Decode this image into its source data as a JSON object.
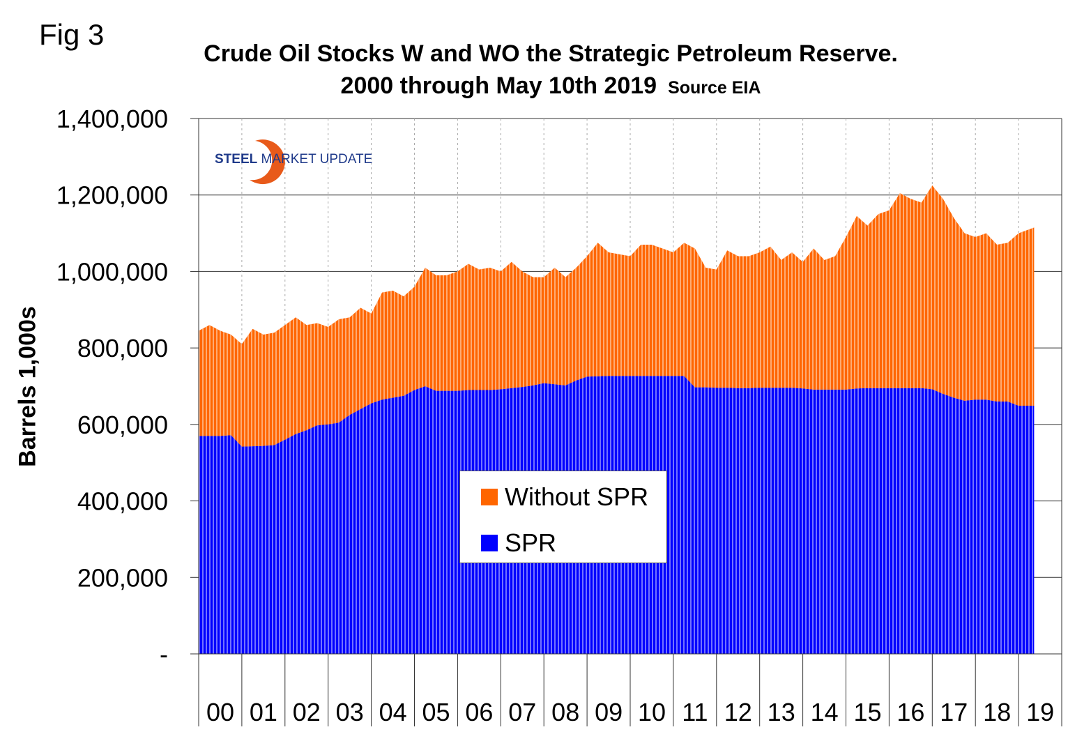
{
  "fig_label": "Fig 3",
  "chart_data": {
    "type": "area",
    "title": "Crude Oil Stocks W and WO the Strategic Petroleum Reserve.",
    "subtitle": "2000 through May 10th 2019",
    "source": "Source EIA",
    "ylabel": "Barrels 1,000s",
    "xlabel": "",
    "ylim": [
      0,
      1400000
    ],
    "yticks": [
      0,
      200000,
      400000,
      600000,
      800000,
      1000000,
      1200000,
      1400000
    ],
    "ytick_labels": [
      "-",
      "200,000",
      "400,000",
      "600,000",
      "800,000",
      "1,000,000",
      "1,200,000",
      "1,400,000"
    ],
    "xlim": [
      2000,
      2020
    ],
    "xtick_labels": [
      "00",
      "01",
      "02",
      "03",
      "04",
      "05",
      "06",
      "07",
      "08",
      "09",
      "10",
      "11",
      "12",
      "13",
      "14",
      "15",
      "16",
      "17",
      "18",
      "19"
    ],
    "grid": true,
    "stacked": true,
    "legend_position": "center",
    "x": [
      "2000-01",
      "2000-04",
      "2000-07",
      "2000-10",
      "2001-01",
      "2001-04",
      "2001-07",
      "2001-10",
      "2002-01",
      "2002-04",
      "2002-07",
      "2002-10",
      "2003-01",
      "2003-04",
      "2003-07",
      "2003-10",
      "2004-01",
      "2004-04",
      "2004-07",
      "2004-10",
      "2005-01",
      "2005-04",
      "2005-07",
      "2005-10",
      "2006-01",
      "2006-04",
      "2006-07",
      "2006-10",
      "2007-01",
      "2007-04",
      "2007-07",
      "2007-10",
      "2008-01",
      "2008-04",
      "2008-07",
      "2008-10",
      "2009-01",
      "2009-04",
      "2009-07",
      "2009-10",
      "2010-01",
      "2010-04",
      "2010-07",
      "2010-10",
      "2011-01",
      "2011-04",
      "2011-07",
      "2011-10",
      "2012-01",
      "2012-04",
      "2012-07",
      "2012-10",
      "2013-01",
      "2013-04",
      "2013-07",
      "2013-10",
      "2014-01",
      "2014-04",
      "2014-07",
      "2014-10",
      "2015-01",
      "2015-04",
      "2015-07",
      "2015-10",
      "2016-01",
      "2016-04",
      "2016-07",
      "2016-10",
      "2017-01",
      "2017-04",
      "2017-07",
      "2017-10",
      "2018-01",
      "2018-04",
      "2018-07",
      "2018-10",
      "2019-01",
      "2019-05"
    ],
    "series": [
      {
        "name": "SPR",
        "color": "#0000ff",
        "values": [
          570000,
          570000,
          570000,
          572000,
          542000,
          543000,
          544000,
          546000,
          560000,
          575000,
          585000,
          598000,
          600000,
          605000,
          625000,
          640000,
          655000,
          665000,
          670000,
          675000,
          690000,
          700000,
          688000,
          688000,
          688000,
          690000,
          690000,
          690000,
          692000,
          695000,
          698000,
          702000,
          708000,
          705000,
          702000,
          715000,
          725000,
          726000,
          727000,
          727000,
          727000,
          727000,
          727000,
          727000,
          727000,
          727000,
          697000,
          697000,
          696000,
          696000,
          695000,
          695000,
          696000,
          696000,
          696000,
          696000,
          694000,
          691000,
          691000,
          691000,
          691000,
          694000,
          695000,
          695000,
          695000,
          695000,
          695000,
          695000,
          692000,
          680000,
          670000,
          662000,
          665000,
          665000,
          660000,
          660000,
          649000,
          649000
        ]
      },
      {
        "name": "Without SPR",
        "color": "#ff6600",
        "values": [
          275000,
          290000,
          275000,
          263000,
          268000,
          307000,
          291000,
          294000,
          300000,
          305000,
          275000,
          267000,
          255000,
          270000,
          255000,
          265000,
          235000,
          280000,
          280000,
          260000,
          270000,
          310000,
          302000,
          302000,
          312000,
          330000,
          315000,
          320000,
          308000,
          330000,
          302000,
          283000,
          277000,
          305000,
          283000,
          295000,
          315000,
          349000,
          323000,
          318000,
          313000,
          343000,
          343000,
          333000,
          323000,
          348000,
          363000,
          313000,
          309000,
          359000,
          345000,
          345000,
          354000,
          369000,
          334000,
          354000,
          331000,
          369000,
          339000,
          349000,
          399000,
          451000,
          425000,
          455000,
          465000,
          510000,
          495000,
          485000,
          533000,
          510000,
          470000,
          438000,
          425000,
          435000,
          410000,
          415000,
          451000,
          466000
        ]
      }
    ]
  }
}
